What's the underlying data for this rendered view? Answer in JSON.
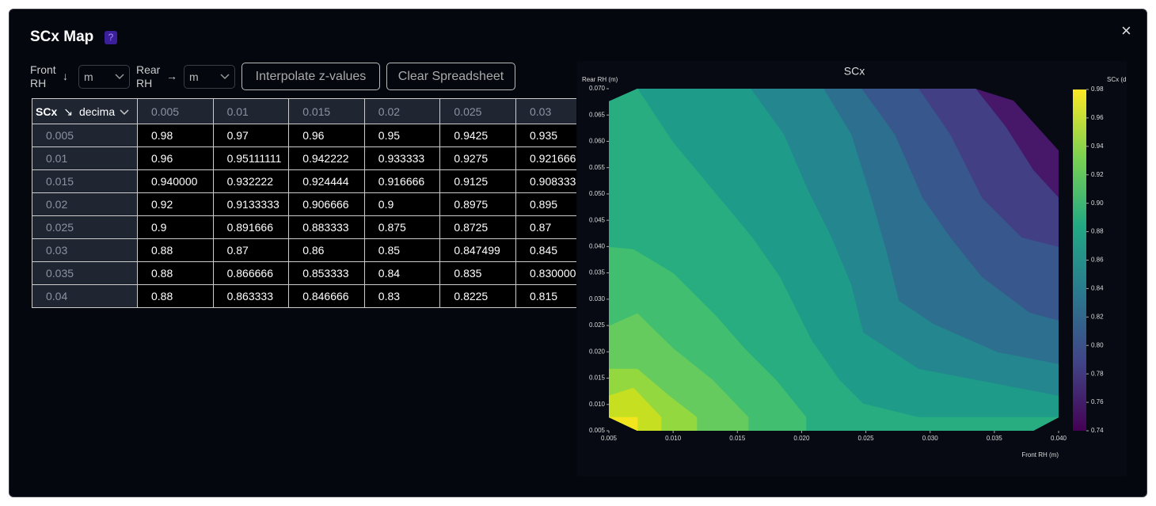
{
  "dialog": {
    "title": "SCx Map",
    "help": "?",
    "close": "×"
  },
  "controls": {
    "front_label": "Front RH",
    "front_arrow": "↓",
    "front_unit": "m",
    "rear_label": "Rear RH",
    "rear_arrow": "→",
    "rear_unit": "m",
    "interpolate": "Interpolate z-values",
    "clear": "Clear Spreadsheet"
  },
  "table": {
    "corner_label": "SCx",
    "corner_arrow": "↘",
    "corner_unit": "decima",
    "columns": [
      "0.005",
      "0.01",
      "0.015",
      "0.02",
      "0.025",
      "0.03"
    ],
    "rows": [
      {
        "label": "0.005",
        "cells": [
          "0.98",
          "0.97",
          "0.96",
          "0.95",
          "0.9425",
          "0.935"
        ]
      },
      {
        "label": "0.01",
        "cells": [
          "0.96",
          "0.95111111",
          "0.942222",
          "0.933333",
          "0.9275",
          "0.921666"
        ]
      },
      {
        "label": "0.015",
        "cells": [
          "0.940000",
          "0.932222",
          "0.924444",
          "0.916666",
          "0.9125",
          "0.908333"
        ]
      },
      {
        "label": "0.02",
        "cells": [
          "0.92",
          "0.9133333",
          "0.906666",
          "0.9",
          "0.8975",
          "0.895"
        ]
      },
      {
        "label": "0.025",
        "cells": [
          "0.9",
          "0.891666",
          "0.883333",
          "0.875",
          "0.8725",
          "0.87"
        ]
      },
      {
        "label": "0.03",
        "cells": [
          "0.88",
          "0.87",
          "0.86",
          "0.85",
          "0.847499",
          "0.845"
        ]
      },
      {
        "label": "0.035",
        "cells": [
          "0.88",
          "0.866666",
          "0.853333",
          "0.84",
          "0.835",
          "0.830000"
        ]
      },
      {
        "label": "0.04",
        "cells": [
          "0.88",
          "0.863333",
          "0.846666",
          "0.83",
          "0.8225",
          "0.815"
        ]
      }
    ]
  },
  "chart_data": {
    "type": "contour",
    "title": "SCx",
    "x_label": "Front RH (m)",
    "y_label": "Rear RH (m)",
    "colorbar_label": "SCx (d",
    "xlim": [
      0.005,
      0.04
    ],
    "xticks": [
      0.005,
      {
        "value": 0.01,
        "label": "0.010"
      },
      0.015,
      {
        "value": 0.02,
        "label": "0.020"
      },
      0.025,
      {
        "value": 0.03,
        "label": "0.030"
      },
      0.035,
      {
        "value": 0.04,
        "label": "0.040"
      }
    ],
    "ylim": [
      0.005,
      0.07
    ],
    "yticks": [
      0.005,
      {
        "value": 0.01,
        "label": "0.010"
      },
      0.015,
      {
        "value": 0.02,
        "label": "0.020"
      },
      0.025,
      {
        "value": 0.03,
        "label": "0.030"
      },
      0.035,
      {
        "value": 0.04,
        "label": "0.040"
      },
      0.045,
      {
        "value": 0.05,
        "label": "0.050"
      },
      0.055,
      {
        "value": 0.06,
        "label": "0.060"
      },
      0.065,
      {
        "value": 0.07,
        "label": "0.070"
      }
    ],
    "clim": [
      0.74,
      0.98
    ],
    "cticks": [
      0.74,
      0.76,
      0.78,
      {
        "value": 0.8,
        "label": "0.80"
      },
      0.82,
      0.84,
      0.86,
      0.88,
      {
        "value": 0.9,
        "label": "0.90"
      },
      0.92,
      0.94,
      0.96,
      0.98
    ],
    "colorscale": [
      "#440154",
      "#414487",
      "#2a788e",
      "#22a884",
      "#7ad151",
      "#fde725"
    ],
    "levels": [
      0.76,
      0.78,
      0.8,
      0.82,
      0.84,
      0.86,
      0.88,
      0.9,
      0.92,
      0.94,
      0.96,
      0.98
    ],
    "level_colors": [
      "#471769",
      "#423f85",
      "#38578c",
      "#2d6f8e",
      "#24868e",
      "#1f9b89",
      "#27ad80",
      "#42be71",
      "#65cb5e",
      "#94d840",
      "#c6e021",
      "#f2e51d"
    ]
  }
}
